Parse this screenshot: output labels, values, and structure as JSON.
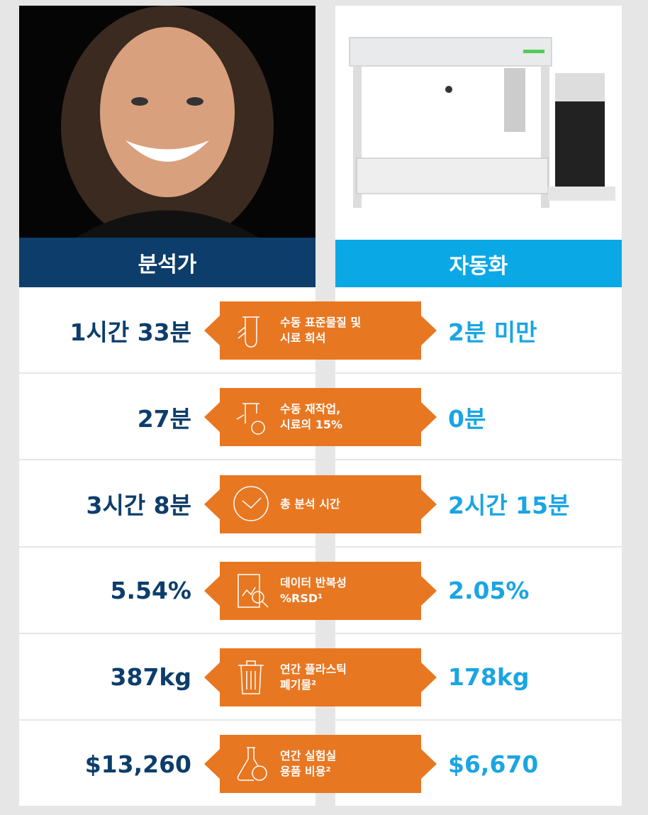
{
  "header": {
    "left": "분석가",
    "right": "자동화"
  },
  "rows": [
    {
      "left": "1시간 33분",
      "label": [
        "수동 표준물질 및",
        "시료 희석"
      ],
      "right": "2분 미만"
    },
    {
      "left": "27분",
      "label": [
        "수동 재작업,",
        "시료의 15%"
      ],
      "right": "0분"
    },
    {
      "left": "3시간 8분",
      "label": [
        "총 분석 시간"
      ],
      "right": "2시간 15분"
    },
    {
      "left": "5.54%",
      "label": [
        "데이터 반복성",
        "%RSD¹"
      ],
      "right": "2.05%"
    },
    {
      "left": "387kg",
      "label": [
        "연간 플라스틱",
        "폐기물²"
      ],
      "right": "178kg"
    },
    {
      "left": "$13,260",
      "label": [
        "연간 실험실",
        "용품 비용²"
      ],
      "right": "$6,670"
    }
  ]
}
